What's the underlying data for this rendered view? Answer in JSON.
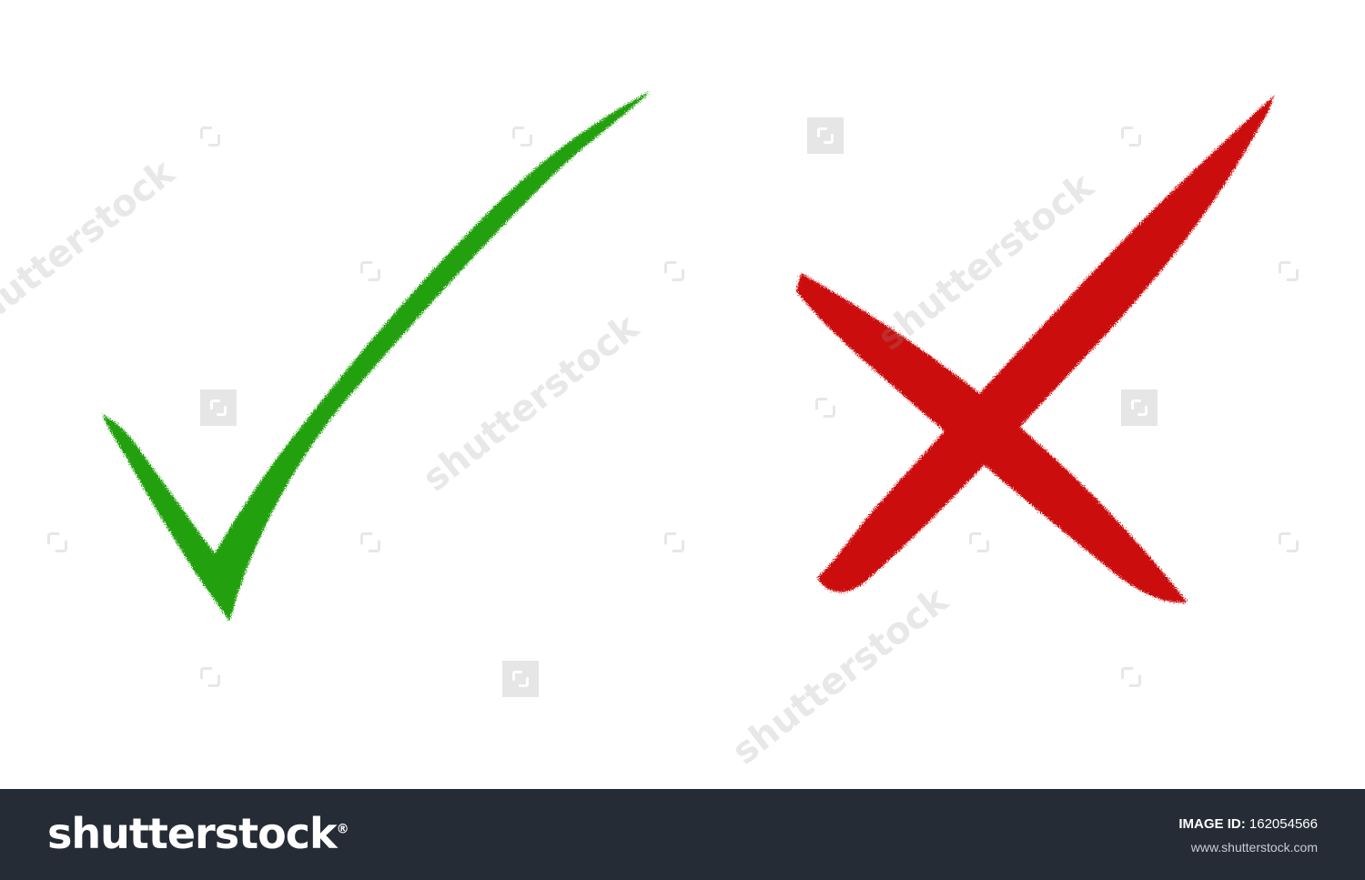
{
  "colors": {
    "check": "#22a010",
    "cross": "#cc0a0a",
    "footer_bg": "#262c36"
  },
  "icons": [
    "check-mark-icon",
    "cross-mark-icon"
  ],
  "watermark": {
    "text": "shutterstock"
  },
  "footer": {
    "logo": "shutterstock",
    "logo_mark": "®",
    "image_id_label": "IMAGE ID:",
    "image_id": "162054566",
    "url": "www.shutterstock.com"
  }
}
